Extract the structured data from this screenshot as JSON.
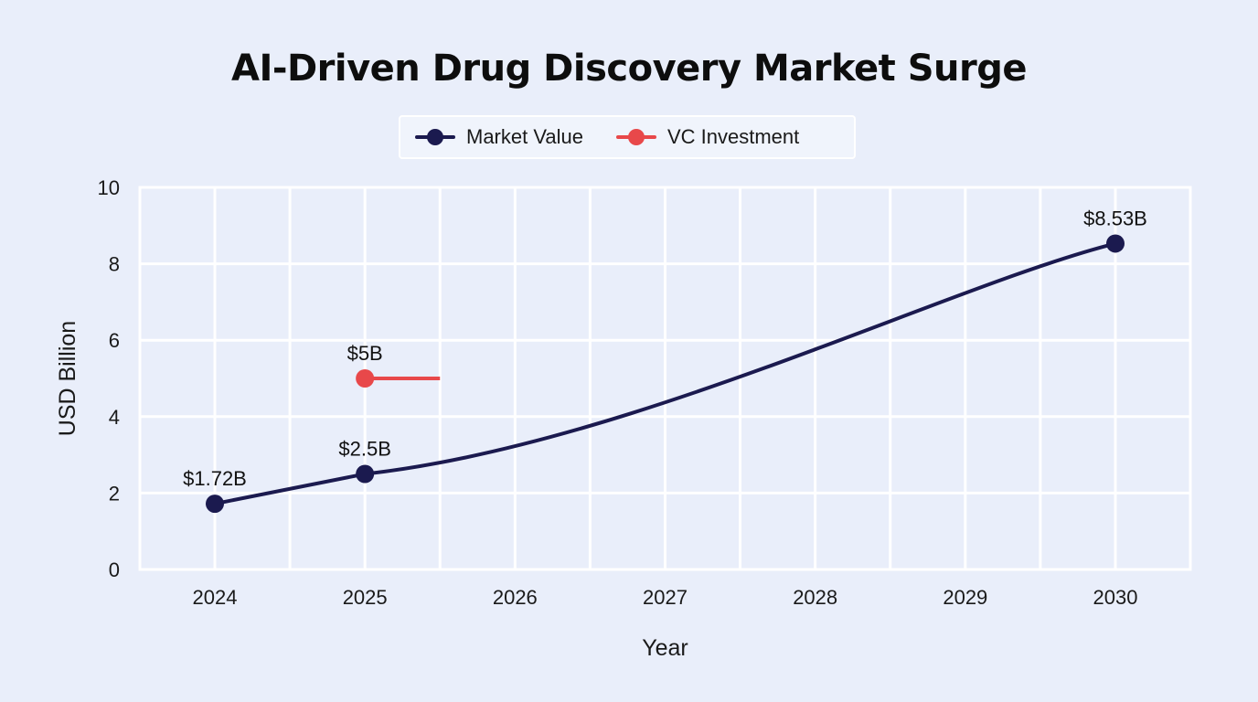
{
  "chart_data": {
    "type": "line",
    "title": "AI-Driven Drug Discovery Market Surge",
    "xlabel": "Year",
    "ylabel": "USD Billion",
    "x_ticks": [
      "2024",
      "2025",
      "2026",
      "2027",
      "2028",
      "2029",
      "2030"
    ],
    "xlim": [
      2024,
      2030
    ],
    "ylim": [
      0,
      10
    ],
    "y_ticks": [
      0,
      2,
      4,
      6,
      8,
      10
    ],
    "grid": true,
    "legend_position": "top-center",
    "series": [
      {
        "name": "Market Value",
        "color": "#1b1a4f",
        "x": [
          2024,
          2025,
          2030
        ],
        "y": [
          1.72,
          2.5,
          8.53
        ],
        "labels": [
          "$1.72B",
          "$2.5B",
          "$8.53B"
        ]
      },
      {
        "name": "VC Investment",
        "color": "#e8484a",
        "x": [
          2025
        ],
        "y": [
          5
        ],
        "labels": [
          "$5B"
        ]
      }
    ]
  }
}
